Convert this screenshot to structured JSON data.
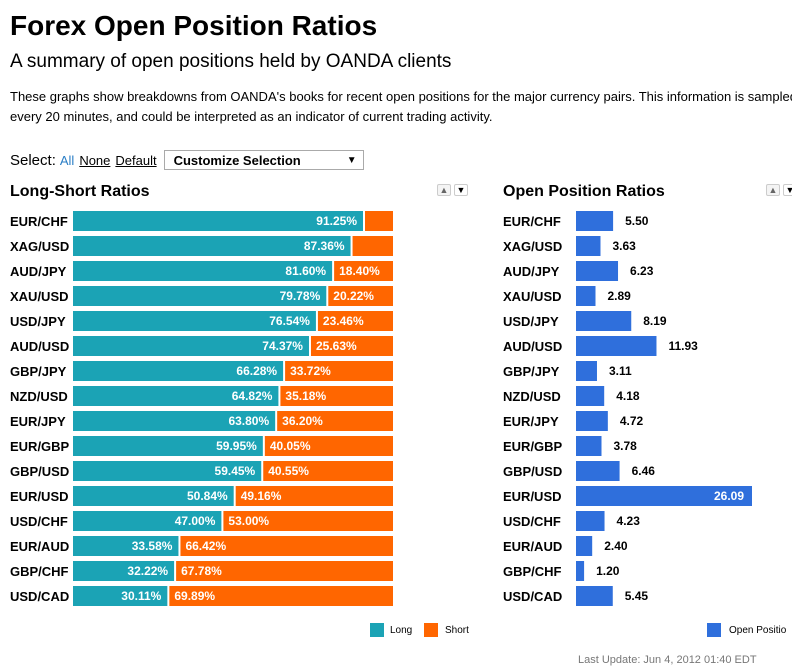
{
  "header": {
    "title": "Forex Open Position Ratios",
    "subtitle": "A summary of open positions held by OANDA clients",
    "description": "These graphs show breakdowns from OANDA's books for recent open positions for the major currency pairs. This information is sampled every 20 minutes, and could be interpreted as an indicator of current trading activity."
  },
  "select": {
    "label": "Select:",
    "all": "All",
    "none": "None",
    "default": "Customize Selection",
    "default_link": "Default",
    "arrow_icon": "triangle-down"
  },
  "colors": {
    "long": "#1ba3b5",
    "short": "#ff6600",
    "open": "#2f6fdc"
  },
  "chart_data": [
    {
      "type": "bar",
      "orientation": "horizontal",
      "stacked": true,
      "title": "Long-Short Ratios",
      "categories": [
        "EUR/CHF",
        "XAG/USD",
        "AUD/JPY",
        "XAU/USD",
        "USD/JPY",
        "AUD/USD",
        "GBP/JPY",
        "NZD/USD",
        "EUR/JPY",
        "EUR/GBP",
        "GBP/USD",
        "EUR/USD",
        "USD/CHF",
        "EUR/AUD",
        "GBP/CHF",
        "USD/CAD"
      ],
      "series": [
        {
          "name": "Long",
          "values": [
            91.25,
            87.36,
            81.6,
            79.78,
            76.54,
            74.37,
            66.28,
            64.82,
            63.8,
            59.95,
            59.45,
            50.84,
            47.0,
            33.58,
            32.22,
            30.11
          ]
        },
        {
          "name": "Short",
          "values": [
            8.75,
            12.64,
            18.4,
            20.22,
            23.46,
            25.63,
            33.72,
            35.18,
            36.2,
            40.05,
            40.55,
            49.16,
            53.0,
            66.42,
            67.78,
            69.89
          ]
        }
      ],
      "short_labels_shown": [
        false,
        false,
        true,
        true,
        true,
        true,
        true,
        true,
        true,
        true,
        true,
        true,
        true,
        true,
        true,
        true
      ],
      "unit": "%",
      "xlim": [
        0,
        100
      ],
      "legend": {
        "position": "bottom-right",
        "items": [
          "Long",
          "Short"
        ]
      }
    },
    {
      "type": "bar",
      "orientation": "horizontal",
      "title": "Open Position Ratios",
      "categories": [
        "EUR/CHF",
        "XAG/USD",
        "AUD/JPY",
        "XAU/USD",
        "USD/JPY",
        "AUD/USD",
        "GBP/JPY",
        "NZD/USD",
        "EUR/JPY",
        "EUR/GBP",
        "GBP/USD",
        "EUR/USD",
        "USD/CHF",
        "EUR/AUD",
        "GBP/CHF",
        "USD/CAD"
      ],
      "values": [
        5.5,
        3.63,
        6.23,
        2.89,
        8.19,
        11.93,
        3.11,
        4.18,
        4.72,
        3.78,
        6.46,
        26.09,
        4.23,
        2.4,
        1.2,
        5.45
      ],
      "xlim": [
        0,
        26.09
      ],
      "legend": {
        "position": "bottom-right",
        "items": [
          "Open Positio"
        ]
      }
    }
  ],
  "footer": {
    "last_update": "Last Update:  Jun 4, 2012 01:40 EDT"
  }
}
